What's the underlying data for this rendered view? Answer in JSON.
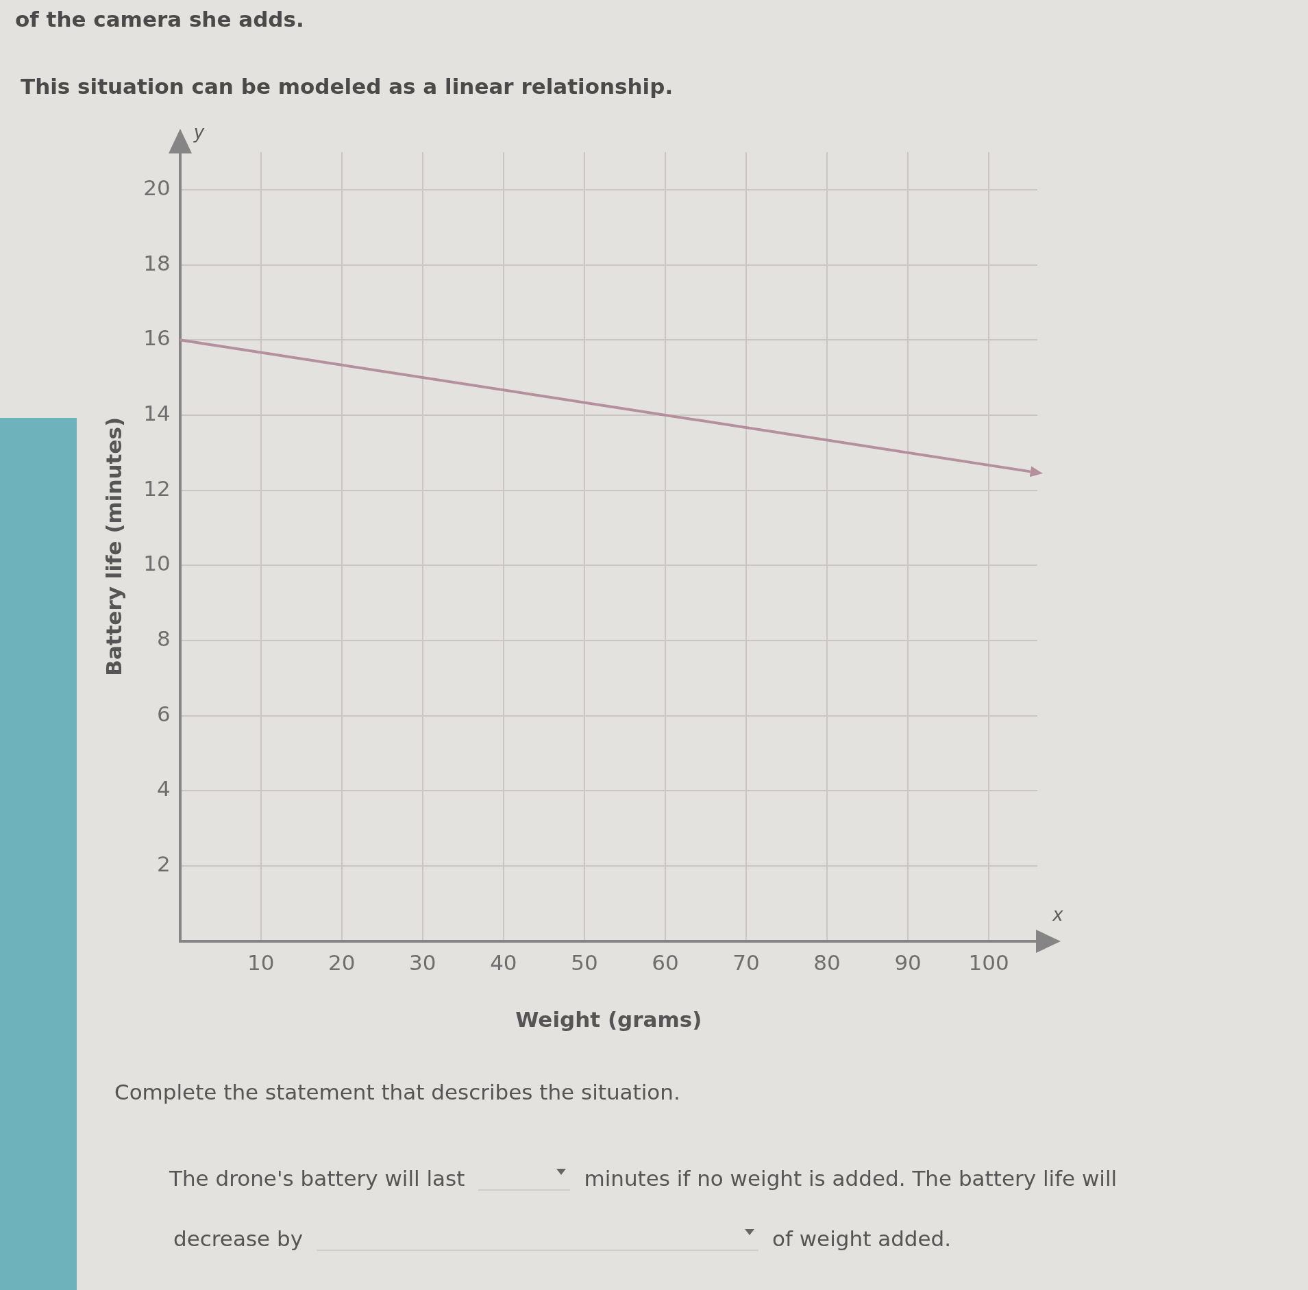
{
  "chart_data": {
    "type": "line",
    "annotations": [
      "of the camera she adds.",
      "This situation can be modeled as a linear relationship.",
      "y",
      "x",
      "Complete the statement that describes the situation.",
      "The drone's battery will last",
      "minutes if no weight is added. The battery life will",
      "decrease by",
      "of weight added."
    ],
    "xlabel": "Weight (grams)",
    "ylabel": "Battery life (minutes)",
    "x": [
      0,
      105
    ],
    "series": [
      {
        "color": "#b58f9d",
        "values": [
          16,
          12.5
        ]
      }
    ],
    "xlim": [
      0,
      106
    ],
    "xticks": [
      10,
      20,
      30,
      40,
      50,
      60,
      70,
      80,
      90,
      100
    ],
    "ylim": [
      0,
      21
    ],
    "yticks": [
      2,
      4,
      6,
      8,
      10,
      12,
      14,
      16,
      18,
      20
    ],
    "grid": true,
    "legend": false,
    "marker": "none",
    "line_style": "solid"
  }
}
